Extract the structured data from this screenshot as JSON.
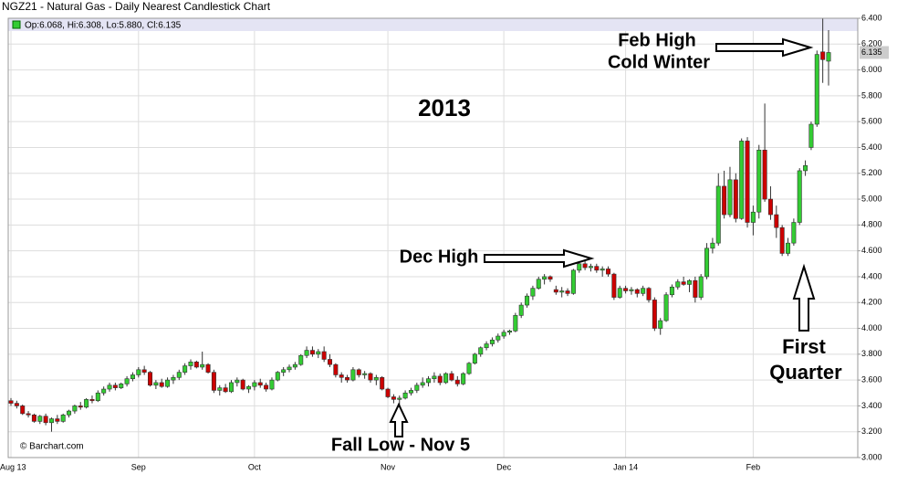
{
  "chart_data": {
    "type": "candlestick",
    "title": "NGZ21 - Natural Gas - Daily Nearest Candlestick Chart",
    "legend_text": "Op:6.068, Hi:6.308, Lo:5.880, Cl:6.135",
    "source": "© Barchart.com",
    "annotations": [
      "Feb High",
      "Cold Winter",
      "2013",
      "Dec High",
      "Fall Low - Nov 5",
      "First",
      "Quarter"
    ],
    "up_color": "#33cc33",
    "down_color": "#cc0000",
    "grid": true,
    "categories": [
      "Aug 13",
      null,
      null,
      null,
      null,
      null,
      null,
      null,
      null,
      null,
      null,
      null,
      null,
      null,
      null,
      null,
      null,
      null,
      null,
      null,
      null,
      null,
      "Sep",
      null,
      null,
      null,
      null,
      null,
      null,
      null,
      null,
      null,
      null,
      null,
      null,
      null,
      null,
      null,
      null,
      null,
      null,
      null,
      "Oct",
      null,
      null,
      null,
      null,
      null,
      null,
      null,
      null,
      null,
      null,
      null,
      null,
      null,
      null,
      null,
      null,
      null,
      null,
      null,
      null,
      null,
      null,
      "Nov",
      null,
      null,
      null,
      null,
      null,
      null,
      null,
      null,
      null,
      null,
      null,
      null,
      null,
      null,
      null,
      null,
      null,
      null,
      null,
      "Dec",
      null,
      null,
      null,
      null,
      null,
      null,
      null,
      null,
      null,
      null,
      null,
      null,
      null,
      null,
      null,
      null,
      null,
      null,
      null,
      null,
      "Jan 14",
      null,
      null,
      null,
      null,
      null,
      null,
      null,
      null,
      null,
      null,
      null,
      null,
      null,
      null,
      null,
      null,
      null,
      null,
      null,
      null,
      null,
      "Feb",
      null,
      null,
      null,
      null,
      null,
      null,
      null,
      null,
      null,
      null,
      null,
      null,
      null
    ],
    "ohlc": [
      [
        3.44,
        3.46,
        3.4,
        3.42
      ],
      [
        3.42,
        3.44,
        3.38,
        3.4
      ],
      [
        3.4,
        3.41,
        3.33,
        3.34
      ],
      [
        3.34,
        3.36,
        3.31,
        3.33
      ],
      [
        3.33,
        3.34,
        3.27,
        3.28
      ],
      [
        3.28,
        3.33,
        3.26,
        3.32
      ],
      [
        3.32,
        3.34,
        3.25,
        3.27
      ],
      [
        3.27,
        3.31,
        3.2,
        3.3
      ],
      [
        3.3,
        3.33,
        3.26,
        3.28
      ],
      [
        3.28,
        3.34,
        3.27,
        3.33
      ],
      [
        3.33,
        3.37,
        3.31,
        3.36
      ],
      [
        3.36,
        3.41,
        3.34,
        3.4
      ],
      [
        3.4,
        3.43,
        3.37,
        3.39
      ],
      [
        3.39,
        3.46,
        3.38,
        3.45
      ],
      [
        3.45,
        3.48,
        3.42,
        3.44
      ],
      [
        3.44,
        3.52,
        3.43,
        3.5
      ],
      [
        3.5,
        3.55,
        3.48,
        3.53
      ],
      [
        3.53,
        3.58,
        3.51,
        3.56
      ],
      [
        3.56,
        3.58,
        3.52,
        3.54
      ],
      [
        3.54,
        3.58,
        3.53,
        3.57
      ],
      [
        3.57,
        3.63,
        3.55,
        3.61
      ],
      [
        3.61,
        3.66,
        3.59,
        3.64
      ],
      [
        3.64,
        3.7,
        3.62,
        3.68
      ],
      [
        3.68,
        3.71,
        3.64,
        3.66
      ],
      [
        3.66,
        3.67,
        3.55,
        3.56
      ],
      [
        3.56,
        3.6,
        3.53,
        3.58
      ],
      [
        3.58,
        3.61,
        3.54,
        3.55
      ],
      [
        3.55,
        3.62,
        3.54,
        3.6
      ],
      [
        3.6,
        3.64,
        3.57,
        3.62
      ],
      [
        3.62,
        3.68,
        3.6,
        3.66
      ],
      [
        3.66,
        3.73,
        3.64,
        3.71
      ],
      [
        3.71,
        3.76,
        3.68,
        3.74
      ],
      [
        3.74,
        3.75,
        3.69,
        3.7
      ],
      [
        3.7,
        3.82,
        3.68,
        3.72
      ],
      [
        3.72,
        3.73,
        3.65,
        3.66
      ],
      [
        3.66,
        3.68,
        3.5,
        3.52
      ],
      [
        3.52,
        3.56,
        3.48,
        3.54
      ],
      [
        3.54,
        3.57,
        3.5,
        3.51
      ],
      [
        3.51,
        3.6,
        3.5,
        3.58
      ],
      [
        3.58,
        3.62,
        3.55,
        3.6
      ],
      [
        3.6,
        3.61,
        3.52,
        3.53
      ],
      [
        3.53,
        3.56,
        3.5,
        3.55
      ],
      [
        3.55,
        3.6,
        3.52,
        3.58
      ],
      [
        3.58,
        3.61,
        3.54,
        3.56
      ],
      [
        3.56,
        3.58,
        3.51,
        3.53
      ],
      [
        3.53,
        3.62,
        3.52,
        3.6
      ],
      [
        3.6,
        3.67,
        3.59,
        3.66
      ],
      [
        3.66,
        3.7,
        3.63,
        3.68
      ],
      [
        3.68,
        3.72,
        3.66,
        3.7
      ],
      [
        3.7,
        3.74,
        3.68,
        3.72
      ],
      [
        3.72,
        3.8,
        3.71,
        3.79
      ],
      [
        3.79,
        3.86,
        3.77,
        3.83
      ],
      [
        3.83,
        3.86,
        3.78,
        3.8
      ],
      [
        3.8,
        3.84,
        3.77,
        3.82
      ],
      [
        3.82,
        3.86,
        3.74,
        3.76
      ],
      [
        3.76,
        3.8,
        3.7,
        3.72
      ],
      [
        3.72,
        3.73,
        3.62,
        3.64
      ],
      [
        3.64,
        3.66,
        3.58,
        3.62
      ],
      [
        3.62,
        3.64,
        3.58,
        3.6
      ],
      [
        3.6,
        3.7,
        3.59,
        3.68
      ],
      [
        3.68,
        3.69,
        3.62,
        3.64
      ],
      [
        3.64,
        3.67,
        3.61,
        3.65
      ],
      [
        3.65,
        3.66,
        3.58,
        3.6
      ],
      [
        3.6,
        3.64,
        3.56,
        3.62
      ],
      [
        3.62,
        3.63,
        3.52,
        3.53
      ],
      [
        3.53,
        3.54,
        3.46,
        3.47
      ],
      [
        3.47,
        3.49,
        3.42,
        3.45
      ],
      [
        3.45,
        3.48,
        3.4,
        3.46
      ],
      [
        3.46,
        3.52,
        3.45,
        3.5
      ],
      [
        3.5,
        3.54,
        3.48,
        3.52
      ],
      [
        3.52,
        3.58,
        3.5,
        3.56
      ],
      [
        3.56,
        3.62,
        3.54,
        3.58
      ],
      [
        3.58,
        3.63,
        3.55,
        3.61
      ],
      [
        3.61,
        3.66,
        3.58,
        3.63
      ],
      [
        3.63,
        3.65,
        3.56,
        3.58
      ],
      [
        3.58,
        3.66,
        3.57,
        3.65
      ],
      [
        3.65,
        3.67,
        3.59,
        3.6
      ],
      [
        3.6,
        3.63,
        3.55,
        3.57
      ],
      [
        3.57,
        3.66,
        3.56,
        3.65
      ],
      [
        3.65,
        3.74,
        3.64,
        3.73
      ],
      [
        3.73,
        3.81,
        3.72,
        3.8
      ],
      [
        3.8,
        3.86,
        3.78,
        3.85
      ],
      [
        3.85,
        3.9,
        3.83,
        3.88
      ],
      [
        3.88,
        3.93,
        3.86,
        3.91
      ],
      [
        3.91,
        3.96,
        3.89,
        3.94
      ],
      [
        3.94,
        3.99,
        3.92,
        3.97
      ],
      [
        3.97,
        3.99,
        3.95,
        3.98
      ],
      [
        3.98,
        4.12,
        3.97,
        4.1
      ],
      [
        4.1,
        4.2,
        4.08,
        4.18
      ],
      [
        4.18,
        4.27,
        4.16,
        4.25
      ],
      [
        4.25,
        4.33,
        4.22,
        4.31
      ],
      [
        4.31,
        4.4,
        4.3,
        4.38
      ],
      [
        4.38,
        4.42,
        4.34,
        4.4
      ],
      [
        4.4,
        4.41,
        4.36,
        4.38
      ],
      [
        4.3,
        4.33,
        4.26,
        4.28
      ],
      [
        4.28,
        4.32,
        4.24,
        4.29
      ],
      [
        4.29,
        4.31,
        4.25,
        4.27
      ],
      [
        4.27,
        4.46,
        4.26,
        4.45
      ],
      [
        4.45,
        4.52,
        4.43,
        4.5
      ],
      [
        4.5,
        4.53,
        4.45,
        4.47
      ],
      [
        4.47,
        4.5,
        4.44,
        4.48
      ],
      [
        4.48,
        4.5,
        4.43,
        4.45
      ],
      [
        4.45,
        4.48,
        4.4,
        4.46
      ],
      [
        4.46,
        4.48,
        4.4,
        4.42
      ],
      [
        4.42,
        4.43,
        4.22,
        4.24
      ],
      [
        4.24,
        4.33,
        4.23,
        4.31
      ],
      [
        4.31,
        4.33,
        4.27,
        4.29
      ],
      [
        4.29,
        4.32,
        4.26,
        4.3
      ],
      [
        4.3,
        4.31,
        4.24,
        4.27
      ],
      [
        4.27,
        4.33,
        4.25,
        4.31
      ],
      [
        4.31,
        4.32,
        4.2,
        4.22
      ],
      [
        4.22,
        4.24,
        3.98,
        4.0
      ],
      [
        4.0,
        4.08,
        3.95,
        4.06
      ],
      [
        4.06,
        4.28,
        4.05,
        4.26
      ],
      [
        4.26,
        4.34,
        4.24,
        4.32
      ],
      [
        4.32,
        4.38,
        4.3,
        4.36
      ],
      [
        4.36,
        4.4,
        4.33,
        4.34
      ],
      [
        4.34,
        4.38,
        4.28,
        4.37
      ],
      [
        4.37,
        4.4,
        4.2,
        4.24
      ],
      [
        4.24,
        4.42,
        4.22,
        4.4
      ],
      [
        4.4,
        4.66,
        4.38,
        4.62
      ],
      [
        4.62,
        4.7,
        4.58,
        4.66
      ],
      [
        4.66,
        5.2,
        4.64,
        5.1
      ],
      [
        5.1,
        5.22,
        4.85,
        4.88
      ],
      [
        4.88,
        5.25,
        4.86,
        5.15
      ],
      [
        5.15,
        5.2,
        4.82,
        4.85
      ],
      [
        4.85,
        5.47,
        4.84,
        5.45
      ],
      [
        5.45,
        5.48,
        4.78,
        4.82
      ],
      [
        4.82,
        4.95,
        4.72,
        4.9
      ],
      [
        4.9,
        5.42,
        4.85,
        5.38
      ],
      [
        5.38,
        5.74,
        4.98,
        5.0
      ],
      [
        5.0,
        5.1,
        4.84,
        4.88
      ],
      [
        4.88,
        4.95,
        4.7,
        4.78
      ],
      [
        4.78,
        4.8,
        4.56,
        4.58
      ],
      [
        4.58,
        4.7,
        4.56,
        4.66
      ],
      [
        4.66,
        4.85,
        4.64,
        4.82
      ],
      [
        4.82,
        5.24,
        4.8,
        5.22
      ],
      [
        5.22,
        5.3,
        5.18,
        5.26
      ],
      [
        5.4,
        5.6,
        5.38,
        5.58
      ],
      [
        5.58,
        6.15,
        5.56,
        6.12
      ],
      [
        6.14,
        6.4,
        5.9,
        6.08
      ],
      [
        6.068,
        6.308,
        5.88,
        6.135
      ]
    ],
    "ylim": [
      3.0,
      6.4
    ],
    "yticks": [
      {
        "value": 3.0,
        "label": "3.000"
      },
      {
        "value": 3.2,
        "label": "3.200"
      },
      {
        "value": 3.4,
        "label": "3.400"
      },
      {
        "value": 3.6,
        "label": "3.600"
      },
      {
        "value": 3.8,
        "label": "3.800"
      },
      {
        "value": 4.0,
        "label": "4.000"
      },
      {
        "value": 4.2,
        "label": "4.200"
      },
      {
        "value": 4.4,
        "label": "4.400"
      },
      {
        "value": 4.6,
        "label": "4.600"
      },
      {
        "value": 4.8,
        "label": "4.800"
      },
      {
        "value": 5.0,
        "label": "5.000"
      },
      {
        "value": 5.2,
        "label": "5.200"
      },
      {
        "value": 5.4,
        "label": "5.400"
      },
      {
        "value": 5.6,
        "label": "5.600"
      },
      {
        "value": 5.8,
        "label": "5.800"
      },
      {
        "value": 6.0,
        "label": "6.000"
      },
      {
        "value": 6.2,
        "label": "6.200"
      },
      {
        "value": 6.4,
        "label": "6.400"
      }
    ]
  }
}
